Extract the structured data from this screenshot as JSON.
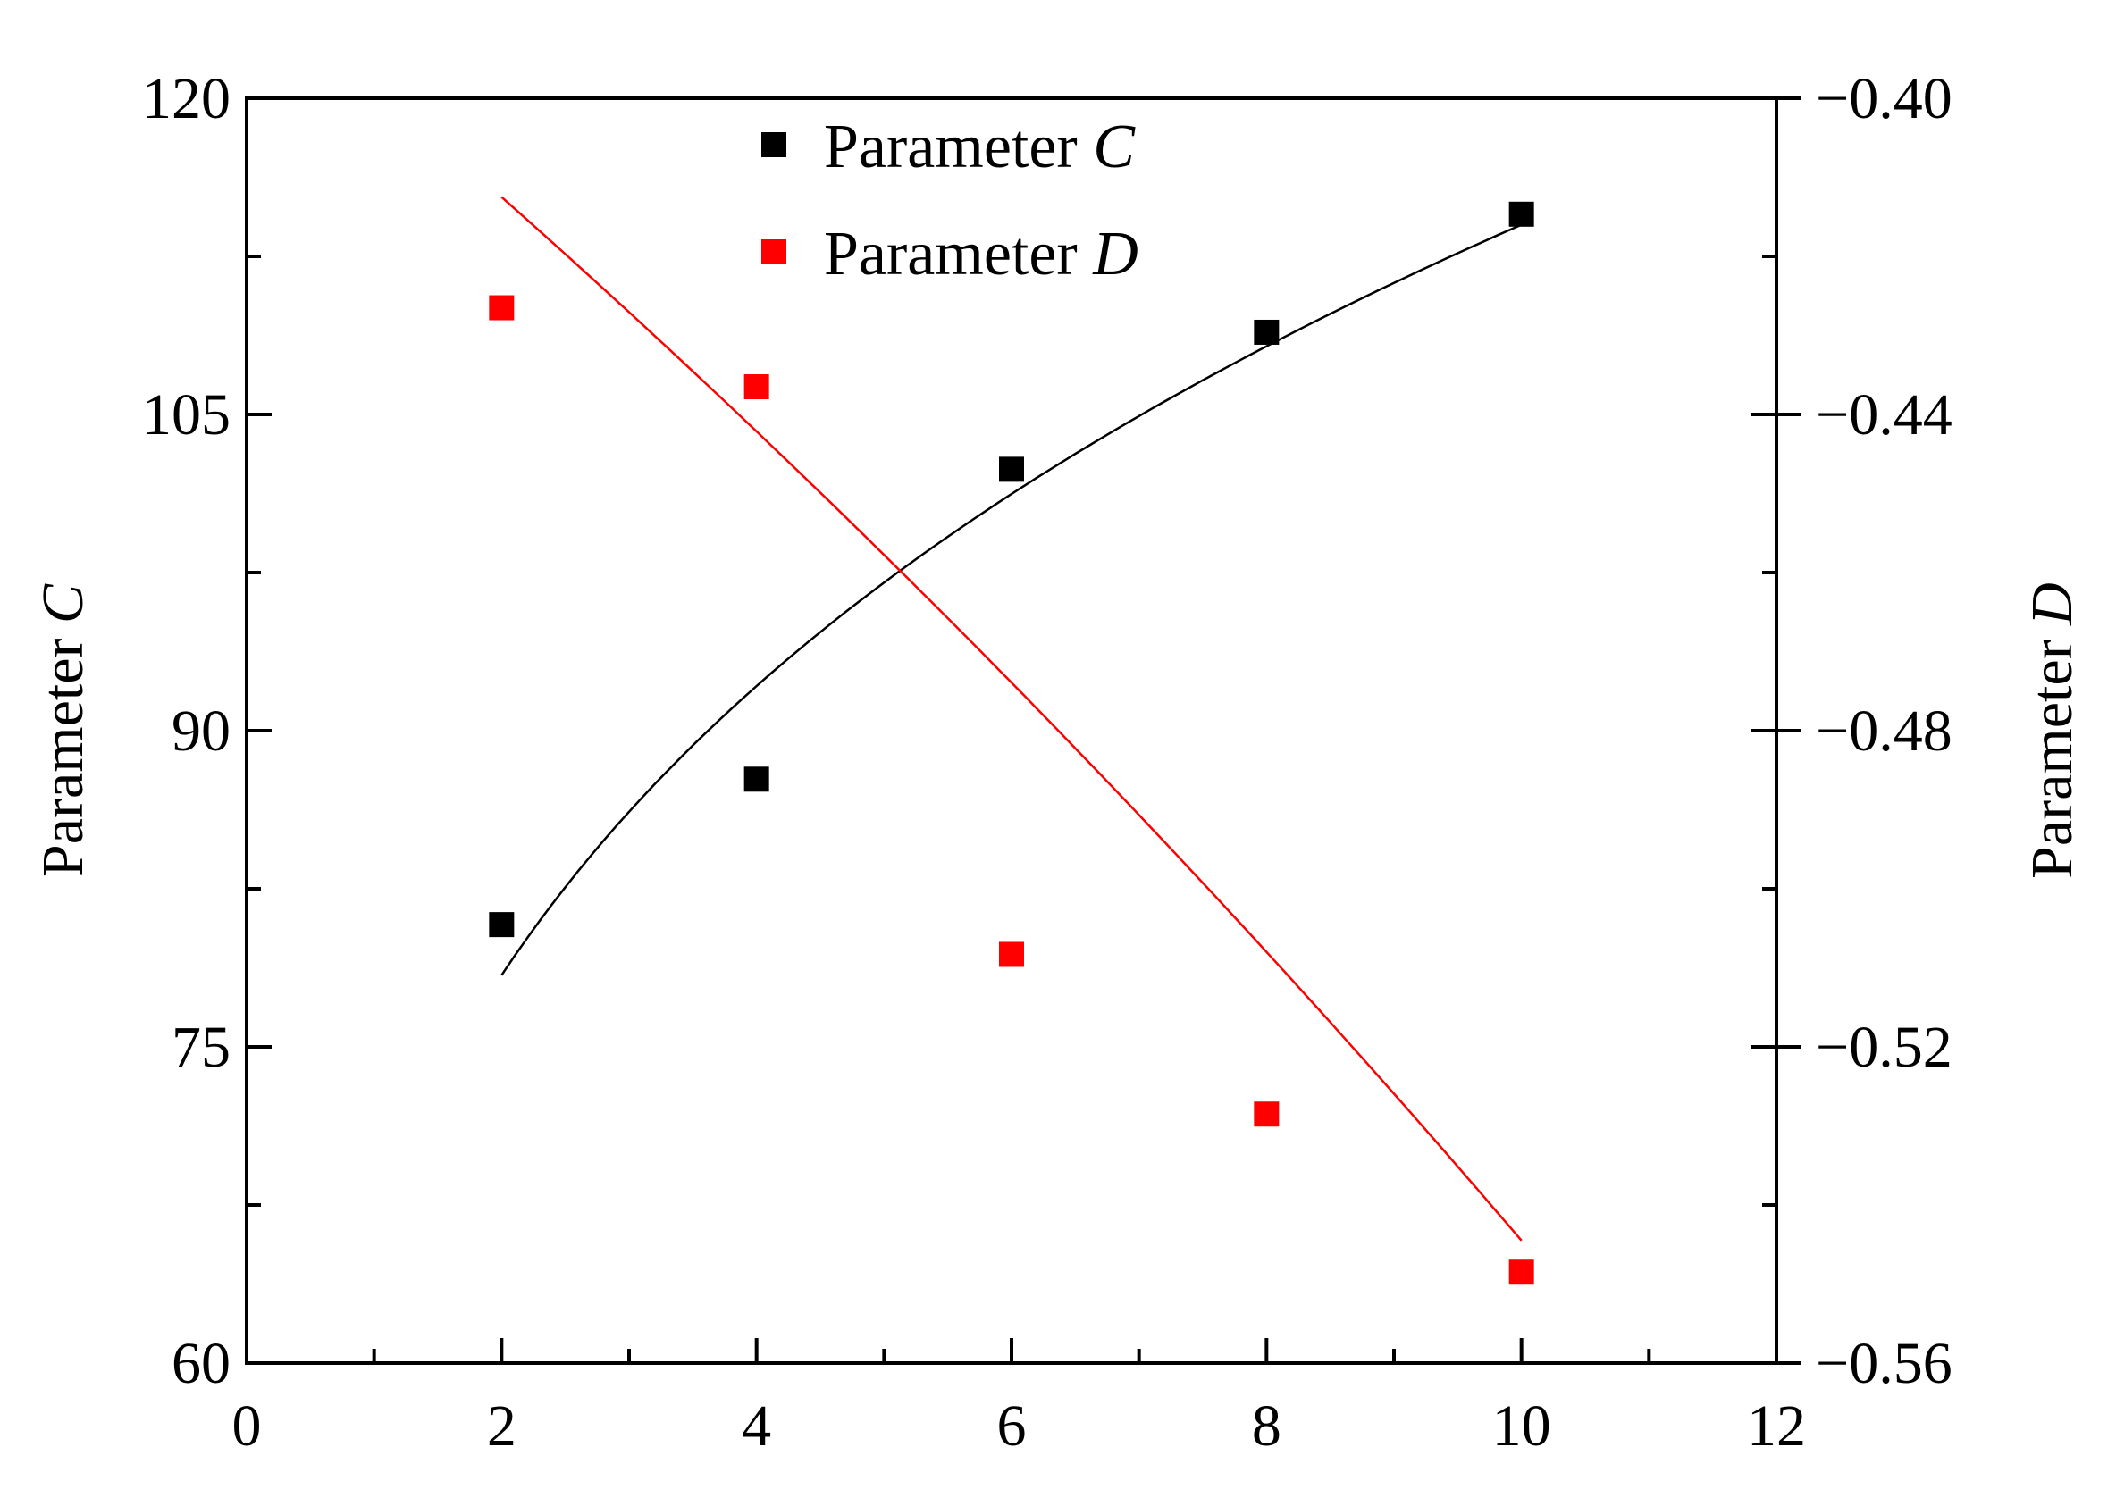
{
  "chart_data": {
    "type": "scatter",
    "x": [
      2,
      4,
      6,
      8,
      10
    ],
    "xlim": [
      0,
      12
    ],
    "x_ticks": [
      0,
      2,
      4,
      6,
      8,
      10,
      12
    ],
    "x_ticks_text": [
      "0",
      "2",
      "4",
      "6",
      "8",
      "10",
      "12"
    ],
    "x_minor_step": 1,
    "xlabel": "",
    "ylabel_left": "Parameter",
    "ylabel_left_var": "C",
    "ylabel_right": "Parameter",
    "ylabel_right_var": "D",
    "ylim_left": [
      60,
      120
    ],
    "y_left_ticks": [
      60,
      75,
      90,
      105,
      120
    ],
    "y_left_ticks_text": [
      "60",
      "75",
      "90",
      "105",
      "120"
    ],
    "y_left_minor_step": 7.5,
    "ylim_right": [
      -0.56,
      -0.4
    ],
    "y_right_ticks": [
      -0.56,
      -0.52,
      -0.48,
      -0.44,
      -0.4
    ],
    "y_right_ticks_text": [
      "−0.56",
      "−0.52",
      "−0.48",
      "−0.44",
      "−0.40"
    ],
    "grid": false,
    "legend_position": "top-center",
    "series": [
      {
        "name": "Parameter",
        "name_var": "C",
        "axis": "left",
        "color": "#000000",
        "values": [
          80.8,
          87.7,
          102.4,
          108.9,
          114.5
        ],
        "fit": {
          "type": "power",
          "x_range": [
            2,
            10
          ],
          "y_start": 78.4,
          "y_end": 114.0
        }
      },
      {
        "name": "Parameter",
        "name_var": "D",
        "axis": "right",
        "color": "#ff0000",
        "values": [
          -0.4265,
          -0.4365,
          -0.5083,
          -0.5285,
          -0.5485
        ],
        "fit": {
          "type": "exponential",
          "x_range": [
            2,
            10
          ],
          "y_start": -0.4125,
          "y_end": -0.5445
        }
      }
    ]
  }
}
